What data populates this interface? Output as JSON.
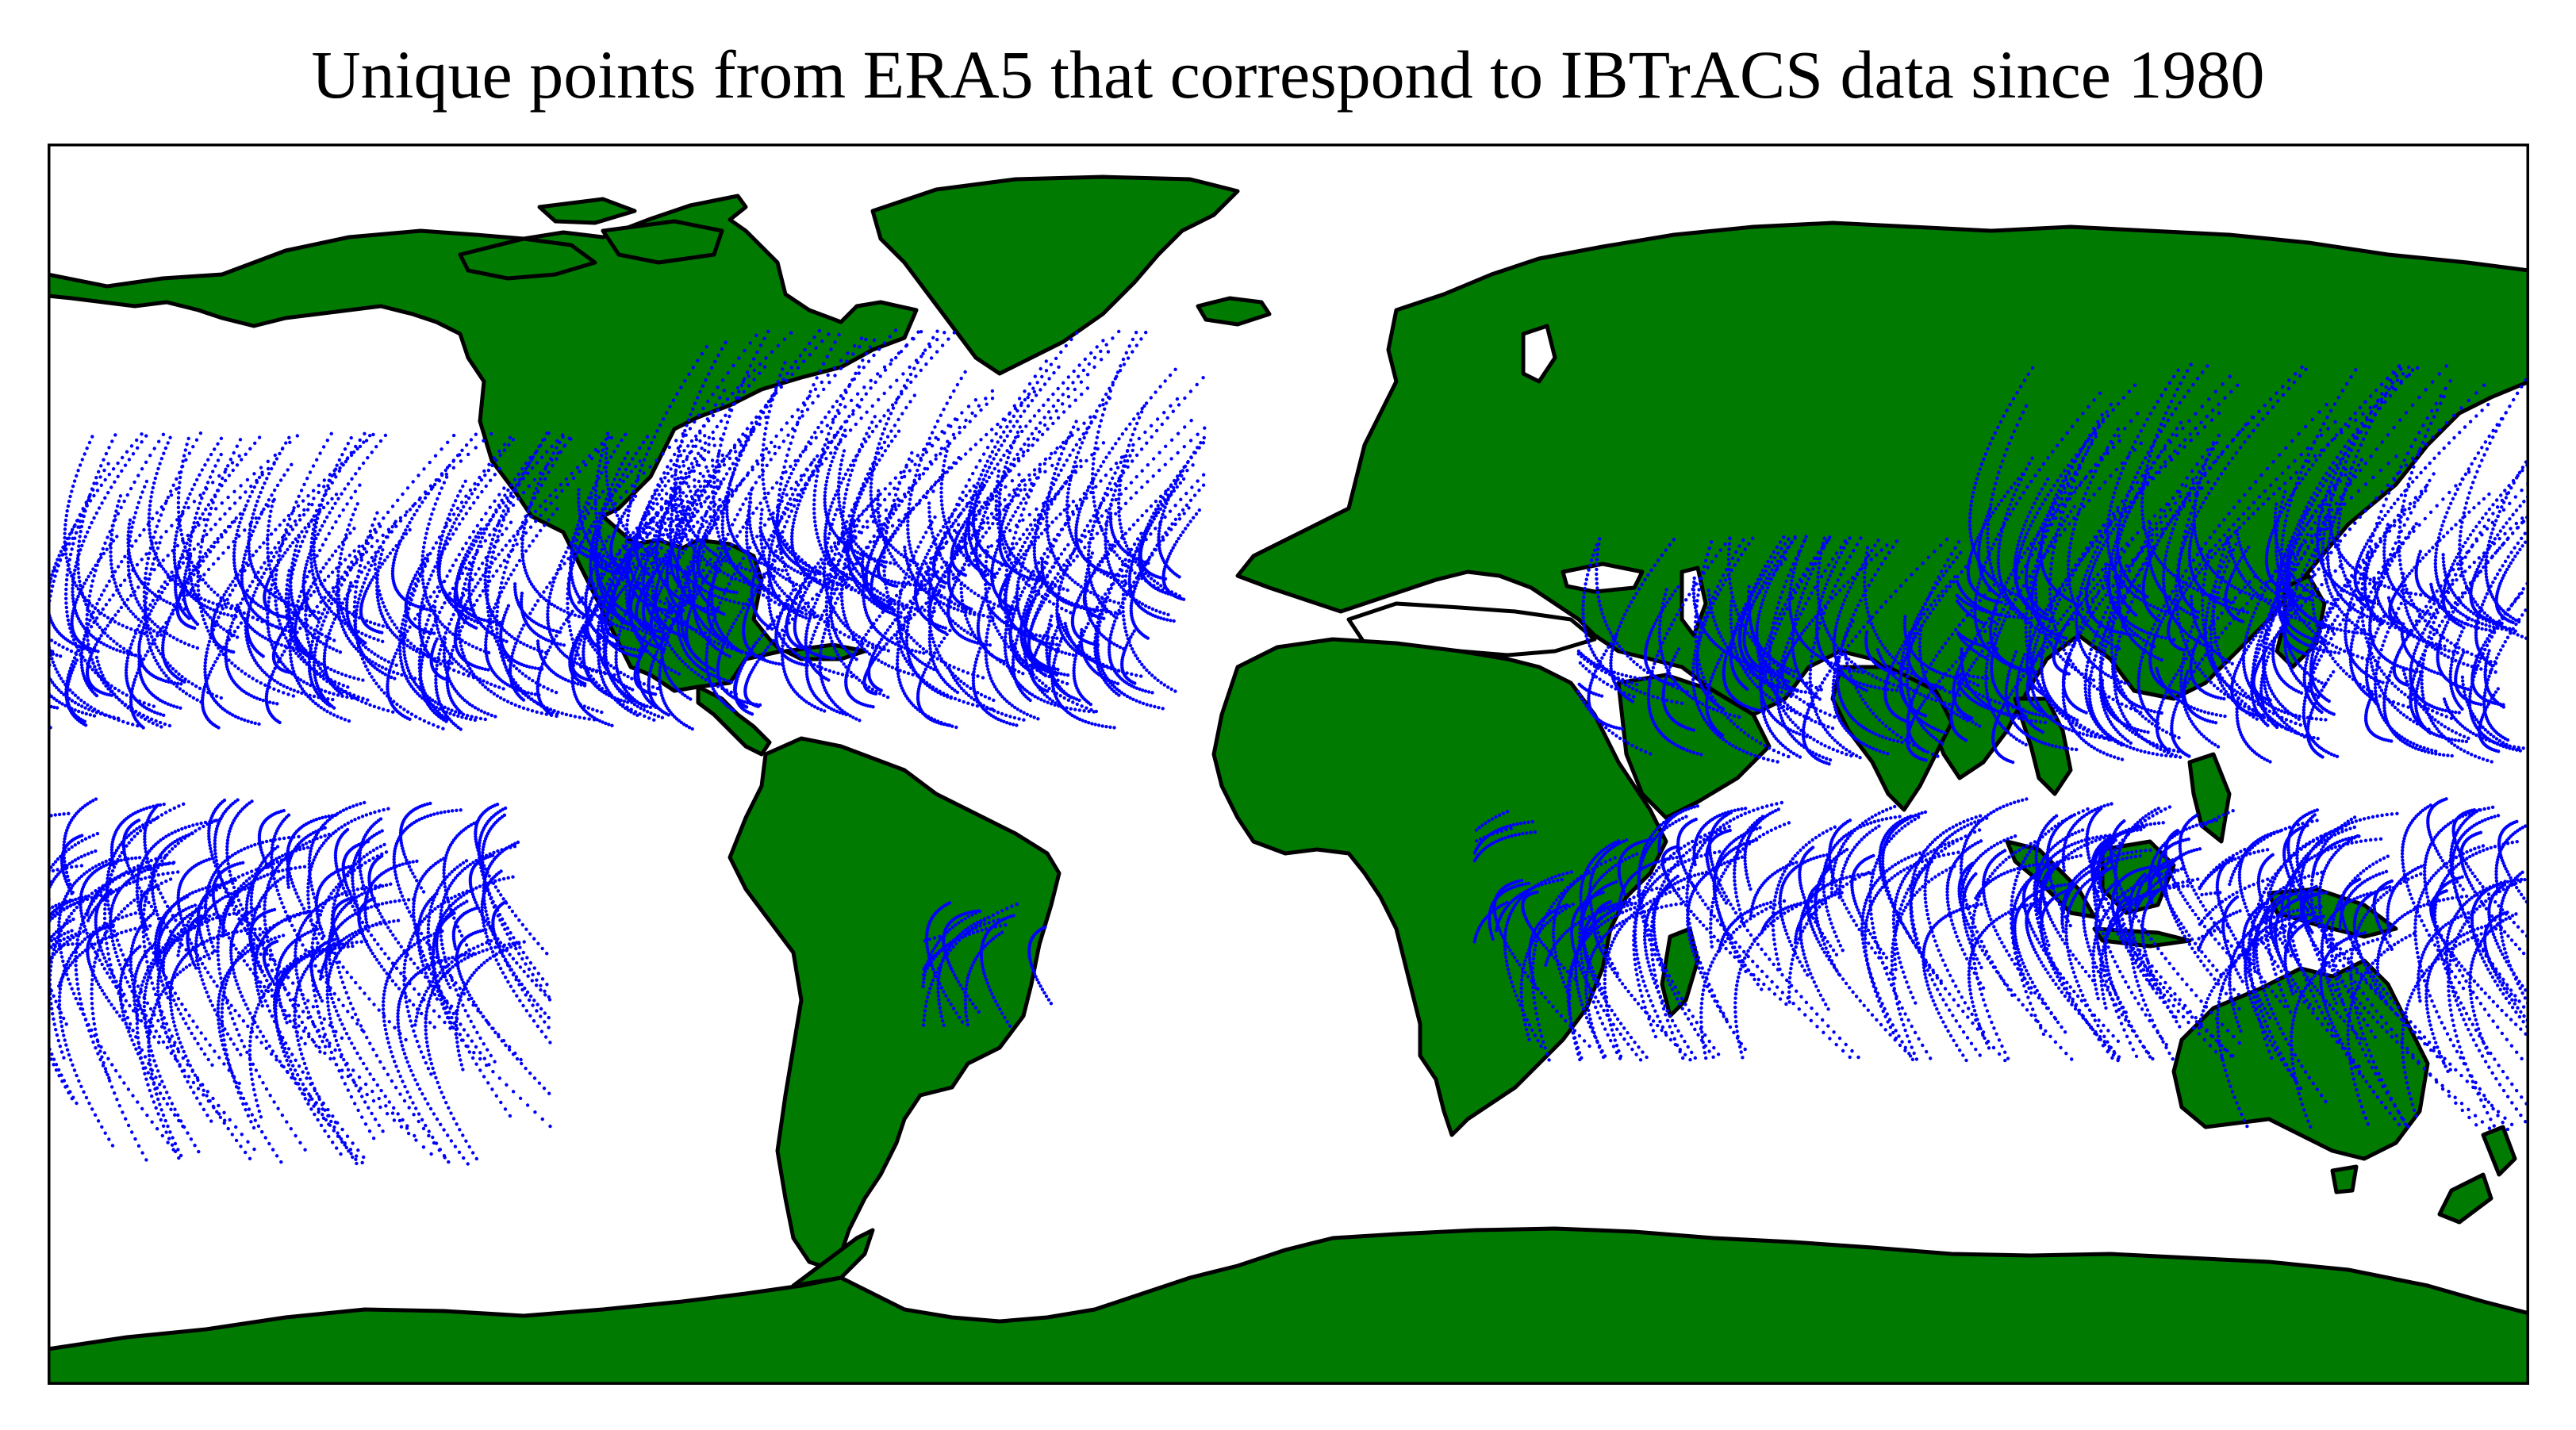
{
  "title": "Unique points from ERA5 that correspond to IBTrACS data since 1980",
  "map": {
    "projection": "PlateCarree",
    "extent": {
      "lon": [
        -180,
        180
      ],
      "lat": [
        -90,
        90
      ]
    },
    "land_color": "#007a00",
    "ocean_color": "#ffffff",
    "coastline_color": "#000000",
    "marker_color": "#0000ff",
    "layers": [
      {
        "name": "land",
        "description": "continents filled green with black coastlines"
      },
      {
        "name": "ERA5 points",
        "description": "unique ERA5 grid points matching IBTrACS tropical cyclone track positions since 1980"
      }
    ],
    "track_regions": [
      {
        "region": "North Atlantic",
        "lon": [
          -100,
          -15
        ],
        "lat": [
          5,
          60
        ]
      },
      {
        "region": "East and Central Pacific",
        "lon": [
          -180,
          -85
        ],
        "lat": [
          5,
          45
        ]
      },
      {
        "region": "West Pacific",
        "lon": [
          100,
          180
        ],
        "lat": [
          0,
          55
        ]
      },
      {
        "region": "North Indian",
        "lon": [
          45,
          100
        ],
        "lat": [
          0,
          30
        ]
      },
      {
        "region": "South Indian",
        "lon": [
          30,
          135
        ],
        "lat": [
          -40,
          -5
        ]
      },
      {
        "region": "South Pacific",
        "lon": [
          135,
          180
        ],
        "lat": [
          -50,
          -5
        ]
      },
      {
        "region": "South Pacific (dateline to 110W)",
        "lon": [
          -180,
          -110
        ],
        "lat": [
          -55,
          -5
        ]
      },
      {
        "region": "South Atlantic",
        "lon": [
          -50,
          -30
        ],
        "lat": [
          -35,
          -20
        ]
      }
    ]
  }
}
